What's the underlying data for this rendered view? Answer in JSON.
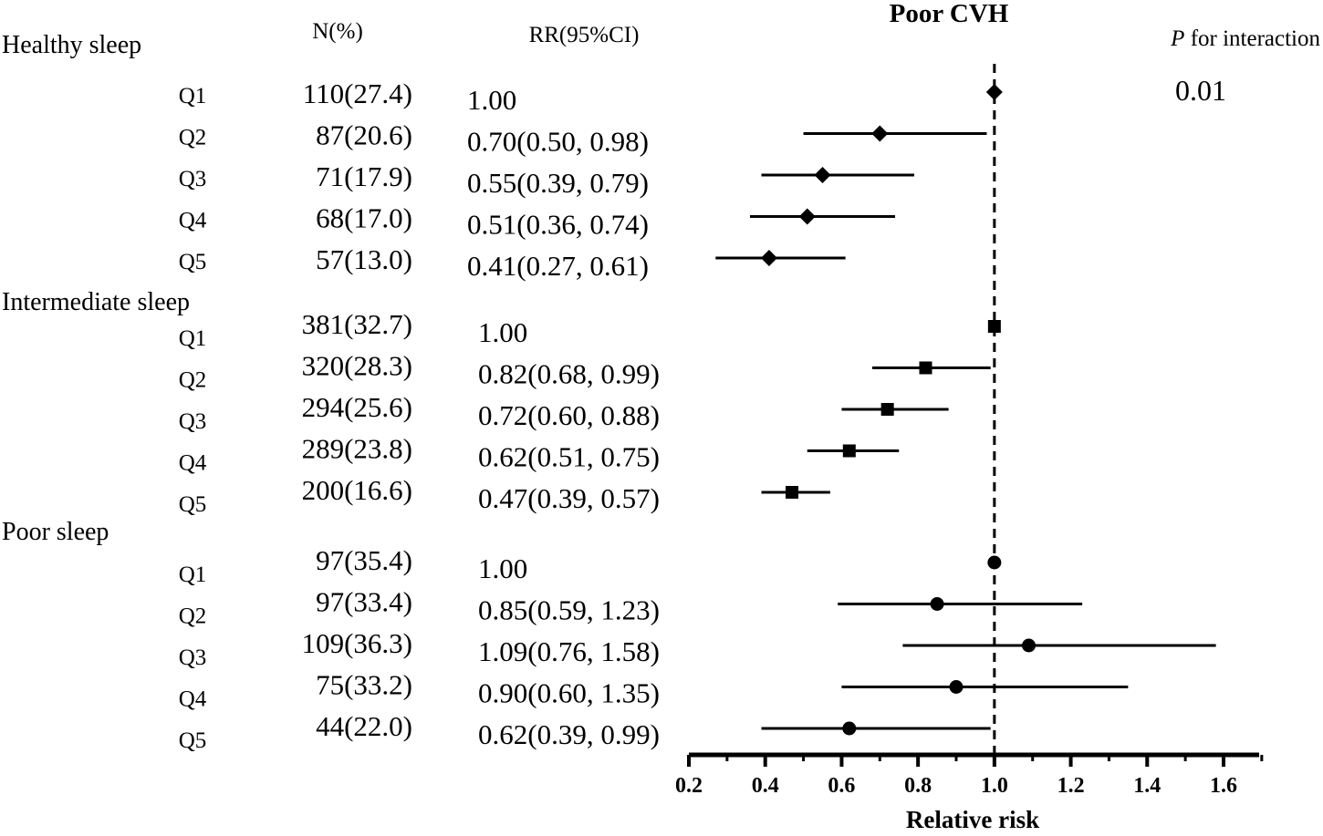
{
  "chart_data": {
    "type": "forest",
    "title": "Poor CVH",
    "column_headers": {
      "n": "N(%)",
      "rr": "RR(95%CI)"
    },
    "interaction": {
      "label_italic": "P",
      "label_rest": " for interaction",
      "value": "0.01"
    },
    "xlabel": "Relative risk",
    "xlim": [
      0.2,
      1.7
    ],
    "xticks": [
      0.2,
      0.4,
      0.6,
      0.8,
      1.0,
      1.2,
      1.4,
      1.6
    ],
    "xtick_labels": [
      "0.2",
      "0.4",
      "0.6",
      "0.8",
      "1.0",
      "1.2",
      "1.4",
      "1.6"
    ],
    "reference_line": 1.0,
    "groups": [
      {
        "name": "Healthy sleep",
        "marker": "diamond",
        "rows": [
          {
            "label": "Q1",
            "n": "110(27.4)",
            "rr_text": "1.00",
            "rr": 1.0,
            "lo": 1.0,
            "hi": 1.0
          },
          {
            "label": "Q2",
            "n": "87(20.6)",
            "rr_text": "0.70(0.50, 0.98)",
            "rr": 0.7,
            "lo": 0.5,
            "hi": 0.98
          },
          {
            "label": "Q3",
            "n": "71(17.9)",
            "rr_text": "0.55(0.39, 0.79)",
            "rr": 0.55,
            "lo": 0.39,
            "hi": 0.79
          },
          {
            "label": "Q4",
            "n": "68(17.0)",
            "rr_text": "0.51(0.36, 0.74)",
            "rr": 0.51,
            "lo": 0.36,
            "hi": 0.74
          },
          {
            "label": "Q5",
            "n": "57(13.0)",
            "rr_text": "0.41(0.27, 0.61)",
            "rr": 0.41,
            "lo": 0.27,
            "hi": 0.61
          }
        ]
      },
      {
        "name": "Intermediate sleep",
        "marker": "square",
        "rows": [
          {
            "label": "Q1",
            "n": "381(32.7)",
            "rr_text": "1.00",
            "rr": 1.0,
            "lo": 1.0,
            "hi": 1.0
          },
          {
            "label": "Q2",
            "n": "320(28.3)",
            "rr_text": "0.82(0.68, 0.99)",
            "rr": 0.82,
            "lo": 0.68,
            "hi": 0.99
          },
          {
            "label": "Q3",
            "n": "294(25.6)",
            "rr_text": "0.72(0.60, 0.88)",
            "rr": 0.72,
            "lo": 0.6,
            "hi": 0.88
          },
          {
            "label": "Q4",
            "n": "289(23.8)",
            "rr_text": "0.62(0.51, 0.75)",
            "rr": 0.62,
            "lo": 0.51,
            "hi": 0.75
          },
          {
            "label": "Q5",
            "n": "200(16.6)",
            "rr_text": "0.47(0.39, 0.57)",
            "rr": 0.47,
            "lo": 0.39,
            "hi": 0.57
          }
        ]
      },
      {
        "name": "Poor sleep",
        "marker": "circle",
        "rows": [
          {
            "label": "Q1",
            "n": "97(35.4)",
            "rr_text": "1.00",
            "rr": 1.0,
            "lo": 1.0,
            "hi": 1.0
          },
          {
            "label": "Q2",
            "n": "97(33.4)",
            "rr_text": "0.85(0.59, 1.23)",
            "rr": 0.85,
            "lo": 0.59,
            "hi": 1.23
          },
          {
            "label": "Q3",
            "n": "109(36.3)",
            "rr_text": "1.09(0.76, 1.58)",
            "rr": 1.09,
            "lo": 0.76,
            "hi": 1.58
          },
          {
            "label": "Q4",
            "n": "75(33.2)",
            "rr_text": "0.90(0.60, 1.35)",
            "rr": 0.9,
            "lo": 0.6,
            "hi": 1.35
          },
          {
            "label": "Q5",
            "n": "44(22.0)",
            "rr_text": "0.62(0.39, 0.99)",
            "rr": 0.62,
            "lo": 0.39,
            "hi": 0.99
          }
        ]
      }
    ]
  }
}
